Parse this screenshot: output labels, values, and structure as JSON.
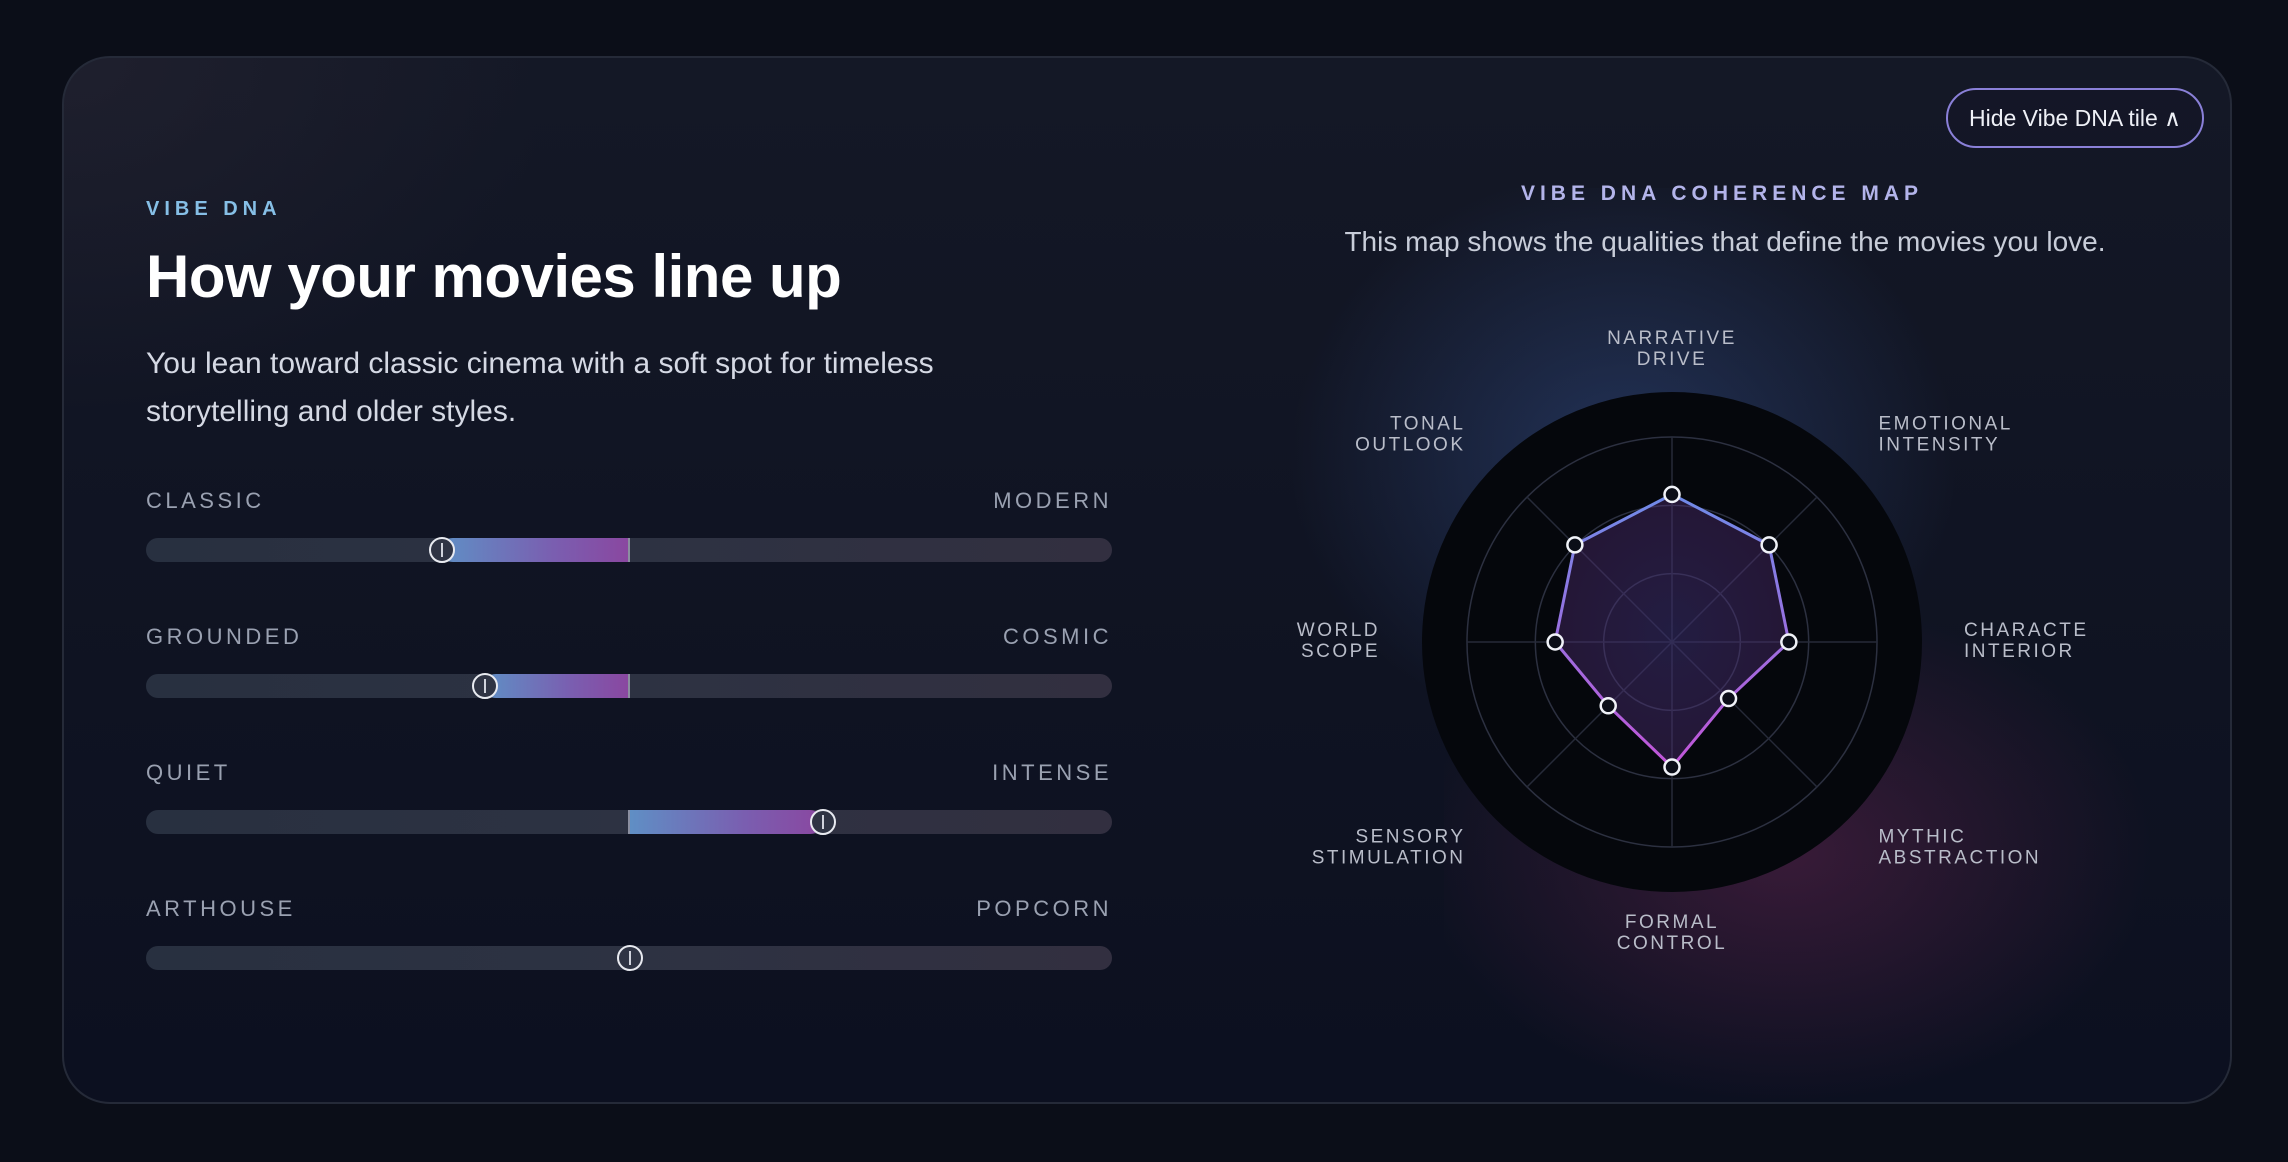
{
  "vibe": {
    "eyebrow": "VIBE DNA",
    "title": "How your movies line up",
    "subtitle": "You lean toward classic cinema with a soft spot for timeless storytelling and older styles."
  },
  "sliders": [
    {
      "left": "CLASSIC",
      "right": "MODERN",
      "value": -0.39
    },
    {
      "left": "GROUNDED",
      "right": "COSMIC",
      "value": -0.3
    },
    {
      "left": "QUIET",
      "right": "INTENSE",
      "value": 0.4
    },
    {
      "left": "ARTHOUSE",
      "right": "POPCORN",
      "value": 0.0
    }
  ],
  "map": {
    "title": "VIBE DNA COHERENCE MAP",
    "description": "This map shows the qualities that define the movies you love.",
    "hide_button": "Hide Vibe DNA tile ∧",
    "axes": [
      {
        "line1": "NARRATIVE",
        "line2": "DRIVE",
        "value": 0.72
      },
      {
        "line1": "EMOTIONAL",
        "line2": "INTENSITY",
        "value": 0.67
      },
      {
        "line1": "CHARACTE",
        "line2": "INTERIOR",
        "value": 0.57
      },
      {
        "line1": "MYTHIC",
        "line2": "ABSTRACTION",
        "value": 0.39
      },
      {
        "line1": "FORMAL",
        "line2": "CONTROL",
        "value": 0.61
      },
      {
        "line1": "SENSORY",
        "line2": "STIMULATION",
        "value": 0.44
      },
      {
        "line1": "WORLD",
        "line2": "SCOPE",
        "value": 0.57
      },
      {
        "line1": "TONAL",
        "line2": "OUTLOOK",
        "value": 0.67
      }
    ],
    "colors": {
      "polygon_start": "#6f8be8",
      "polygon_end": "#c255d8"
    }
  }
}
